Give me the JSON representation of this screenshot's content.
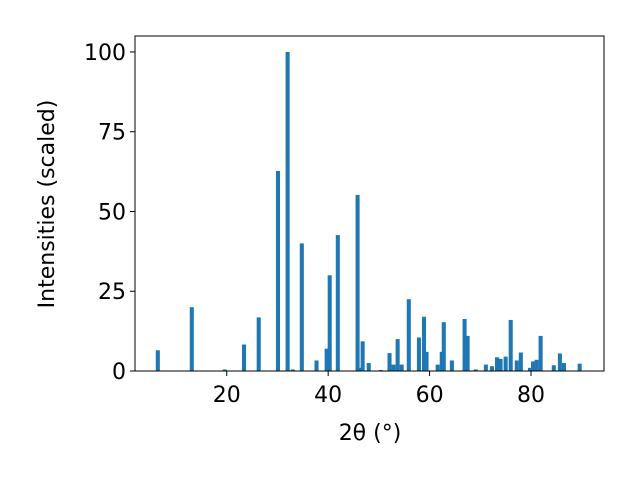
{
  "chart_data": {
    "type": "bar",
    "xlabel": "2θ (°)",
    "ylabel": "Intensities (scaled)",
    "color": "#1f77b4",
    "x": [
      6.4,
      13.1,
      19.6,
      23.4,
      26.3,
      30.1,
      32.0,
      33.0,
      34.8,
      37.7,
      39.7,
      40.3,
      41.9,
      45.8,
      46.4,
      46.8,
      48.0,
      50.4,
      52.1,
      52.9,
      53.7,
      54.5,
      55.9,
      57.9,
      58.9,
      59.4,
      61.6,
      62.4,
      62.8,
      64.4,
      66.9,
      67.5,
      69.1,
      71.1,
      72.3,
      73.3,
      74.0,
      75.0,
      76.0,
      77.2,
      78.0,
      79.8,
      80.4,
      81.1,
      81.9,
      84.5,
      85.7,
      86.5,
      89.6
    ],
    "values": [
      6.5,
      20,
      0.5,
      8.3,
      16.8,
      62.7,
      100,
      0.5,
      40,
      3.3,
      7,
      30,
      42.6,
      55.2,
      1,
      9.3,
      2.5,
      0.3,
      5.6,
      2,
      10,
      2,
      22.5,
      10.5,
      17,
      6,
      2,
      6,
      15.3,
      3.3,
      16.3,
      11,
      0.5,
      2,
      1.5,
      4.3,
      3.8,
      4.5,
      16,
      3.3,
      5.8,
      1,
      3,
      3.5,
      11,
      1.8,
      5.5,
      2.5,
      2.3
    ],
    "xlim": [
      1.9,
      94.4
    ],
    "xticks": [
      20,
      40,
      60,
      80
    ],
    "ylim": [
      0,
      105
    ],
    "yticks": [
      0,
      25,
      50,
      75,
      100
    ]
  }
}
